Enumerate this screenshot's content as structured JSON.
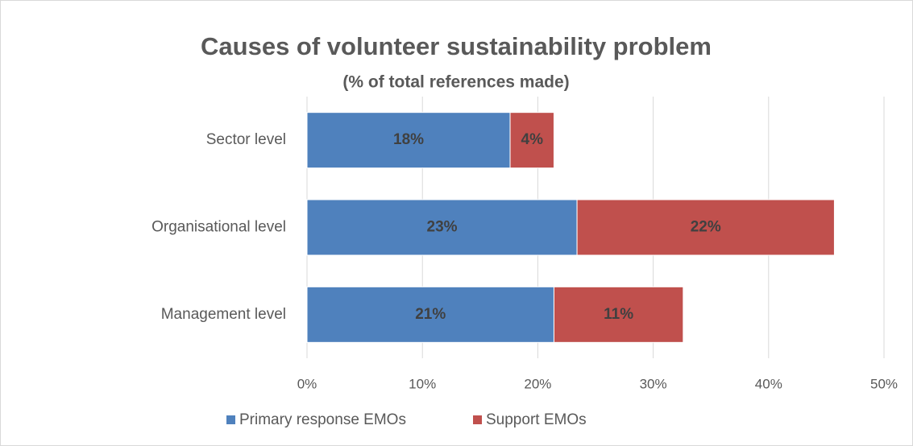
{
  "chart_data": {
    "type": "stacked_bar_horizontal",
    "title": "Causes of volunteer sustainability problem",
    "subtitle": "(% of total references made)",
    "categories": [
      "Sector level",
      "Organisational level",
      "Management level"
    ],
    "series": [
      {
        "name": "Primary response EMOs",
        "color": "#4f81bd",
        "values": [
          17.6,
          23.4,
          21.4
        ],
        "value_labels": [
          "18%",
          "23%",
          "21%"
        ]
      },
      {
        "name": "Support EMOs",
        "color": "#c0504d",
        "values": [
          3.8,
          22.3,
          11.2
        ],
        "value_labels": [
          "4%",
          "22%",
          "11%"
        ]
      }
    ],
    "xlim": [
      0,
      50
    ],
    "xticks": [
      {
        "value": 0,
        "label": "0%"
      },
      {
        "value": 10,
        "label": "10%"
      },
      {
        "value": 20,
        "label": "20%"
      },
      {
        "value": 30,
        "label": "30%"
      },
      {
        "value": 40,
        "label": "40%"
      },
      {
        "value": 50,
        "label": "50%"
      }
    ],
    "grid": true,
    "legend": "bottom"
  }
}
